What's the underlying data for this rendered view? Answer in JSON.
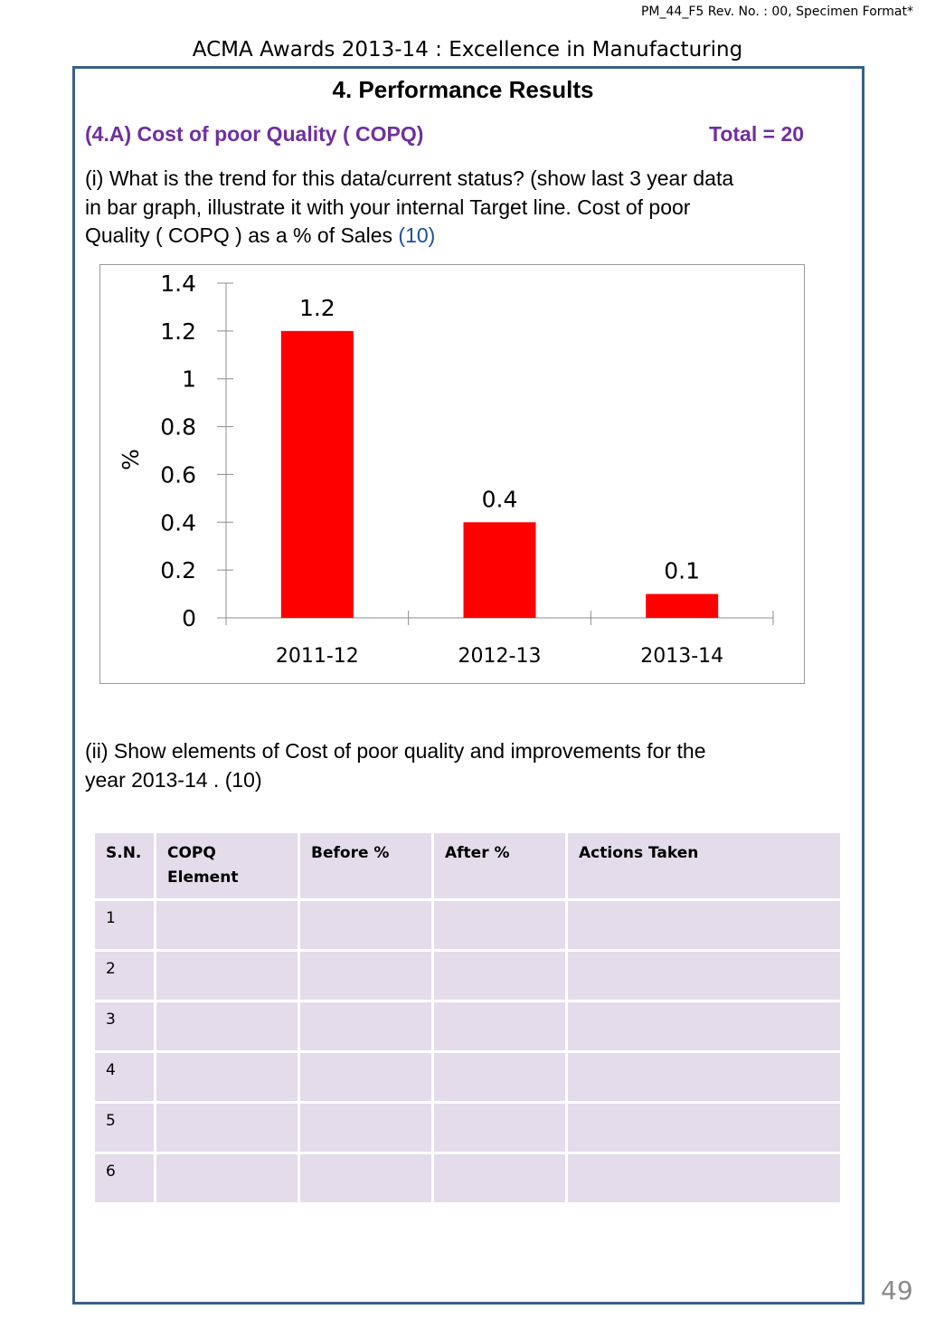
{
  "header": {
    "form_code": "PM_44_F5   Rev. No. : 00, Specimen Format*",
    "award_title": "ACMA  Awards  2013-14 :  Excellence  in Manufacturing"
  },
  "section": {
    "title": "4. Performance  Results",
    "sub_heading": "(4.A)  Cost  of  poor  Quality ( COPQ)",
    "total": "Total  = 20"
  },
  "question1": {
    "line1": "(i) What is the trend for this data/current status? (show last 3 year data",
    "line2": "in bar graph, illustrate it with your internal Target line.  Cost  of  poor",
    "line3": "Quality ( COPQ ) as  a  %  of  Sales ",
    "marks": "(10)"
  },
  "chart_data": {
    "type": "bar",
    "categories": [
      "2011-12",
      "2012-13",
      "2013-14"
    ],
    "values": [
      1.2,
      0.4,
      0.1
    ],
    "data_labels": [
      "1.2",
      "0.4",
      "0.1"
    ],
    "ylabel": "%",
    "ylim": [
      0,
      1.4
    ],
    "yticks": [
      "0",
      "0.2",
      "0.4",
      "0.6",
      "0.8",
      "1",
      "1.2",
      "1.4"
    ],
    "bar_color": "#ff0000",
    "grid": false,
    "legend": "none"
  },
  "question2": {
    "line1": "(ii) Show   elements of Cost of poor quality and  improvements  for  the",
    "line2": "year  2013-14 .  (10)"
  },
  "table": {
    "headers": [
      "S.N.",
      "COPQ Element",
      "Before  %",
      "After  %",
      "Actions  Taken"
    ],
    "rows": [
      [
        "1",
        "",
        "",
        "",
        ""
      ],
      [
        "2",
        "",
        "",
        "",
        ""
      ],
      [
        "3",
        "",
        "",
        "",
        ""
      ],
      [
        "4",
        "",
        "",
        "",
        ""
      ],
      [
        "5",
        "",
        "",
        "",
        ""
      ],
      [
        "6",
        "",
        "",
        "",
        ""
      ]
    ]
  },
  "page_number": "49"
}
